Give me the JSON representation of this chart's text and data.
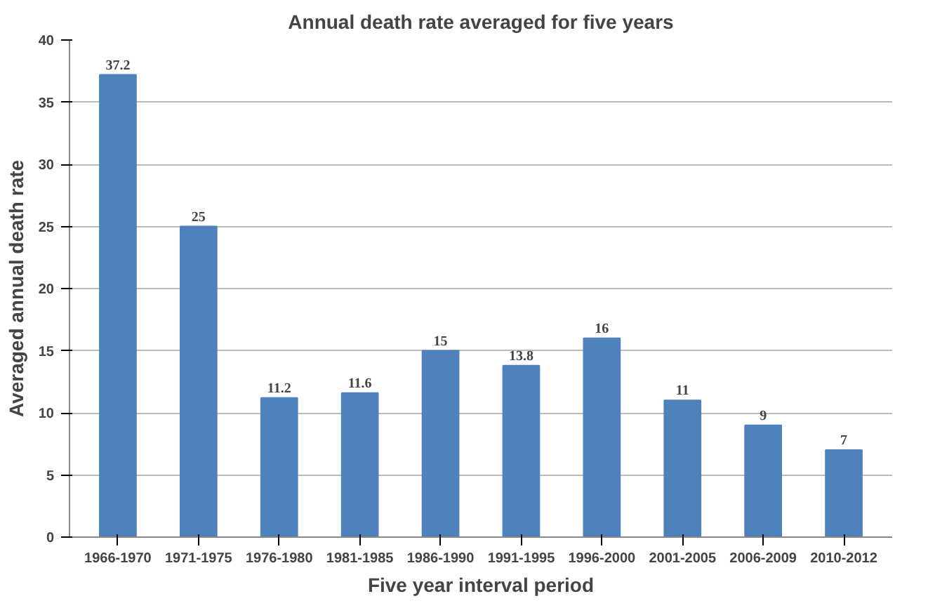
{
  "chart_data": {
    "type": "bar",
    "title": "Annual death rate averaged for five years",
    "xlabel": "Five year interval period",
    "ylabel": "Averaged annual death rate",
    "categories": [
      "1966-1970",
      "1971-1975",
      "1976-1980",
      "1981-1985",
      "1986-1990",
      "1991-1995",
      "1996-2000",
      "2001-2005",
      "2006-2009",
      "2010-2012"
    ],
    "values": [
      37.2,
      25,
      11.2,
      11.6,
      15,
      13.8,
      16,
      11,
      9,
      7
    ],
    "color": "#4f81bd",
    "ylim": [
      0,
      40
    ],
    "yticks": [
      0,
      5,
      10,
      15,
      20,
      25,
      30,
      35,
      40
    ],
    "grid": "y",
    "data_labels": true
  }
}
